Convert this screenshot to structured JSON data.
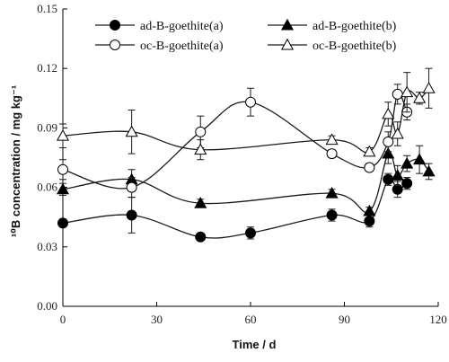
{
  "chart_data": {
    "type": "line",
    "xlabel": "Time / d",
    "ylabel": "¹⁰B concentration / mg kg⁻¹",
    "xlim": [
      0,
      120
    ],
    "ylim": [
      0,
      0.15
    ],
    "xticks": [
      "0",
      "30",
      "60",
      "90",
      "120"
    ],
    "yticks": [
      "0.00",
      "0.03",
      "0.06",
      "0.09",
      "0.12",
      "0.15"
    ],
    "grid": false,
    "legend_position": "top",
    "series": [
      {
        "name": "ad-B-goethite(a)",
        "marker": "circle-filled",
        "x": [
          0,
          22,
          44,
          60,
          86,
          98,
          104,
          107,
          110
        ],
        "y": [
          0.042,
          0.046,
          0.035,
          0.037,
          0.046,
          0.043,
          0.064,
          0.059,
          0.062
        ],
        "err": [
          0.002,
          0.009,
          0.001,
          0.003,
          0.003,
          0.003,
          0.003,
          0.004,
          0.003
        ]
      },
      {
        "name": "ad-B-goethite(b)",
        "marker": "triangle-filled",
        "x": [
          0,
          22,
          44,
          86,
          98,
          104,
          107,
          110,
          114,
          117
        ],
        "y": [
          0.059,
          0.064,
          0.052,
          0.057,
          0.048,
          0.077,
          0.066,
          0.072,
          0.074,
          0.068
        ],
        "err": [
          0.003,
          0.005,
          0.002,
          0.002,
          0.002,
          0.005,
          0.005,
          0.004,
          0.007,
          0.004
        ]
      },
      {
        "name": "oc-B-goethite(a)",
        "marker": "circle-open",
        "x": [
          0,
          22,
          44,
          60,
          86,
          98,
          104,
          107,
          110
        ],
        "y": [
          0.069,
          0.06,
          0.088,
          0.103,
          0.077,
          0.07,
          0.083,
          0.107,
          0.098
        ],
        "err": [
          0.005,
          0.005,
          0.008,
          0.007,
          0.002,
          0.002,
          0.005,
          0.005,
          0.004
        ]
      },
      {
        "name": "oc-B-goethite(b)",
        "marker": "triangle-open",
        "x": [
          0,
          22,
          44,
          86,
          98,
          104,
          107,
          110,
          114,
          117
        ],
        "y": [
          0.086,
          0.088,
          0.079,
          0.084,
          0.078,
          0.097,
          0.087,
          0.108,
          0.105,
          0.11
        ],
        "err": [
          0.006,
          0.011,
          0.005,
          0.002,
          0.002,
          0.006,
          0.006,
          0.01,
          0.003,
          0.01
        ]
      }
    ]
  }
}
